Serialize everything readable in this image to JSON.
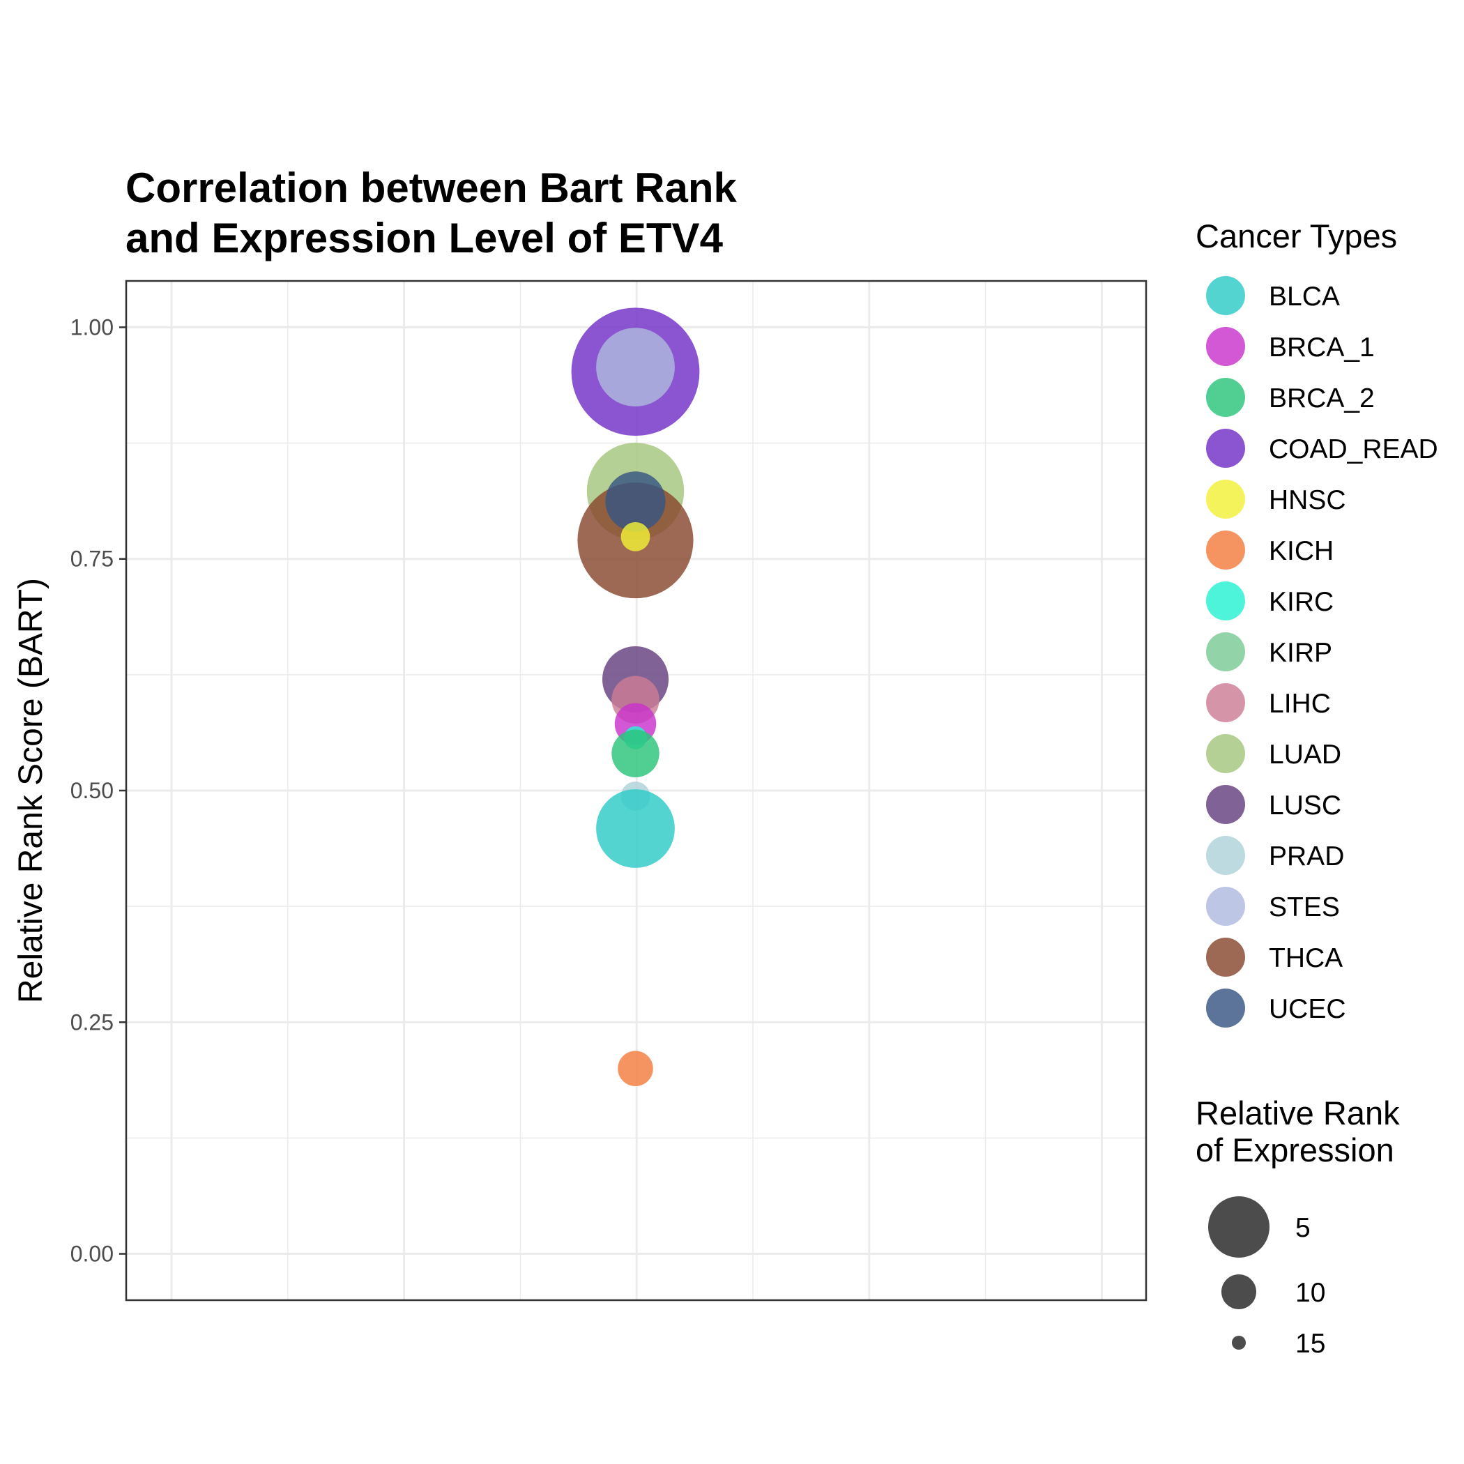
{
  "chart_data": {
    "type": "scatter",
    "title_lines": [
      "Correlation between Bart Rank",
      "and Expression Level of ETV4"
    ],
    "xlabel": "",
    "ylabel": "Relative Rank Score (BART)",
    "ylim": [
      -0.05,
      1.05
    ],
    "y_ticks": [
      0.0,
      0.25,
      0.5,
      0.75,
      1.0
    ],
    "y_tick_labels": [
      "0.00",
      "0.25",
      "0.50",
      "0.75",
      "1.00"
    ],
    "grid": true,
    "color_legend": {
      "title": "Cancer Types",
      "position": "right",
      "entries": [
        {
          "name": "BLCA",
          "color": "#2ECBC7"
        },
        {
          "name": "BRCA_1",
          "color": "#C833CC"
        },
        {
          "name": "BRCA_2",
          "color": "#2BC37A"
        },
        {
          "name": "COAD_READ",
          "color": "#7130C8"
        },
        {
          "name": "HNSC",
          "color": "#F2F037"
        },
        {
          "name": "KICH",
          "color": "#F47D3E"
        },
        {
          "name": "KIRC",
          "color": "#27F2D2"
        },
        {
          "name": "KIRP",
          "color": "#7ACB95"
        },
        {
          "name": "LIHC",
          "color": "#CC7C95"
        },
        {
          "name": "LUAD",
          "color": "#A5C67C"
        },
        {
          "name": "LUSC",
          "color": "#653F7F"
        },
        {
          "name": "PRAD",
          "color": "#AED2DB"
        },
        {
          "name": "STES",
          "color": "#AEBADE"
        },
        {
          "name": "THCA",
          "color": "#87472E"
        },
        {
          "name": "UCEC",
          "color": "#385582"
        }
      ]
    },
    "size_legend": {
      "title_lines": [
        "Relative Rank",
        "of Expression"
      ],
      "entries": [
        {
          "label": "5",
          "value": 5
        },
        {
          "label": "10",
          "value": 10
        },
        {
          "label": "15",
          "value": 15
        }
      ]
    },
    "points": [
      {
        "type": "COAD_READ",
        "y": 0.952,
        "expr_rank": 1
      },
      {
        "type": "STES",
        "y": 0.957,
        "expr_rank": 9
      },
      {
        "type": "LUAD",
        "y": 0.823,
        "expr_rank": 6
      },
      {
        "type": "THCA",
        "y": 0.77,
        "expr_rank": 3
      },
      {
        "type": "UCEC",
        "y": 0.812,
        "expr_rank": 12
      },
      {
        "type": "HNSC",
        "y": 0.774,
        "expr_rank": 17
      },
      {
        "type": "LUSC",
        "y": 0.62,
        "expr_rank": 11
      },
      {
        "type": "LIHC",
        "y": 0.598,
        "expr_rank": 14
      },
      {
        "type": "BRCA_1",
        "y": 0.572,
        "expr_rank": 15
      },
      {
        "type": "KIRC",
        "y": 0.557,
        "expr_rank": 18
      },
      {
        "type": "BRCA_2",
        "y": 0.54,
        "expr_rank": 14
      },
      {
        "type": "PRAD",
        "y": 0.494,
        "expr_rank": 17
      },
      {
        "type": "BLCA",
        "y": 0.459,
        "expr_rank": 9
      },
      {
        "type": "KICH",
        "y": 0.2,
        "expr_rank": 16
      }
    ]
  }
}
